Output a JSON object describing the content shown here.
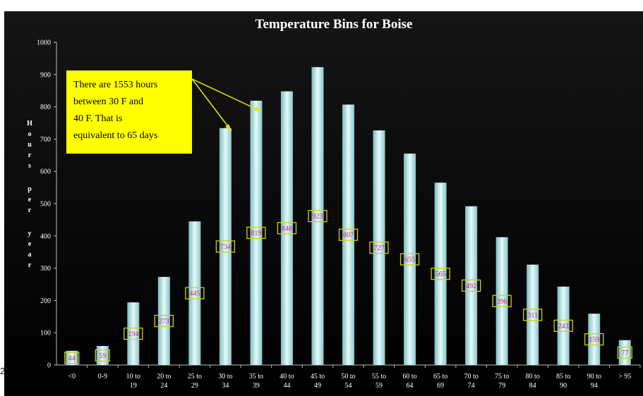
{
  "page_number": "2",
  "chart_data": {
    "type": "bar",
    "title": "Temperature Bins for Boise",
    "ylabel": "Hours per year",
    "xlabel": "",
    "ylim": [
      0,
      1000
    ],
    "yticks": [
      0,
      100,
      200,
      300,
      400,
      500,
      600,
      700,
      800,
      900,
      1000
    ],
    "grid": false,
    "categories": [
      "<0",
      "0-9",
      "10 to 19",
      "20 to 24",
      "25 to 29",
      "30 to 34",
      "35 to 39",
      "40 to 44",
      "45 to 49",
      "50 to 54",
      "55 to 59",
      "60 to 64",
      "65 to 69",
      "70 to 74",
      "75 to 79",
      "80 to 84",
      "85 to 90",
      "90 to 94",
      "> 95"
    ],
    "values": [
      44,
      59,
      194,
      273,
      445,
      734,
      819,
      848,
      923,
      807,
      727,
      655,
      565,
      492,
      396,
      311,
      243,
      159,
      77
    ],
    "annotation": {
      "lines": [
        "There are 1553 hours",
        "between  30 F and",
        "40 F. That is",
        "equivalent to 65 days"
      ],
      "points_to": [
        "30 to 34",
        "35 to 39"
      ]
    },
    "colors": {
      "background": "#000000",
      "bar": "#bfeff2",
      "data_label": "#e0204a",
      "label_box": "#d8d000",
      "callout": "#ffff00"
    }
  }
}
